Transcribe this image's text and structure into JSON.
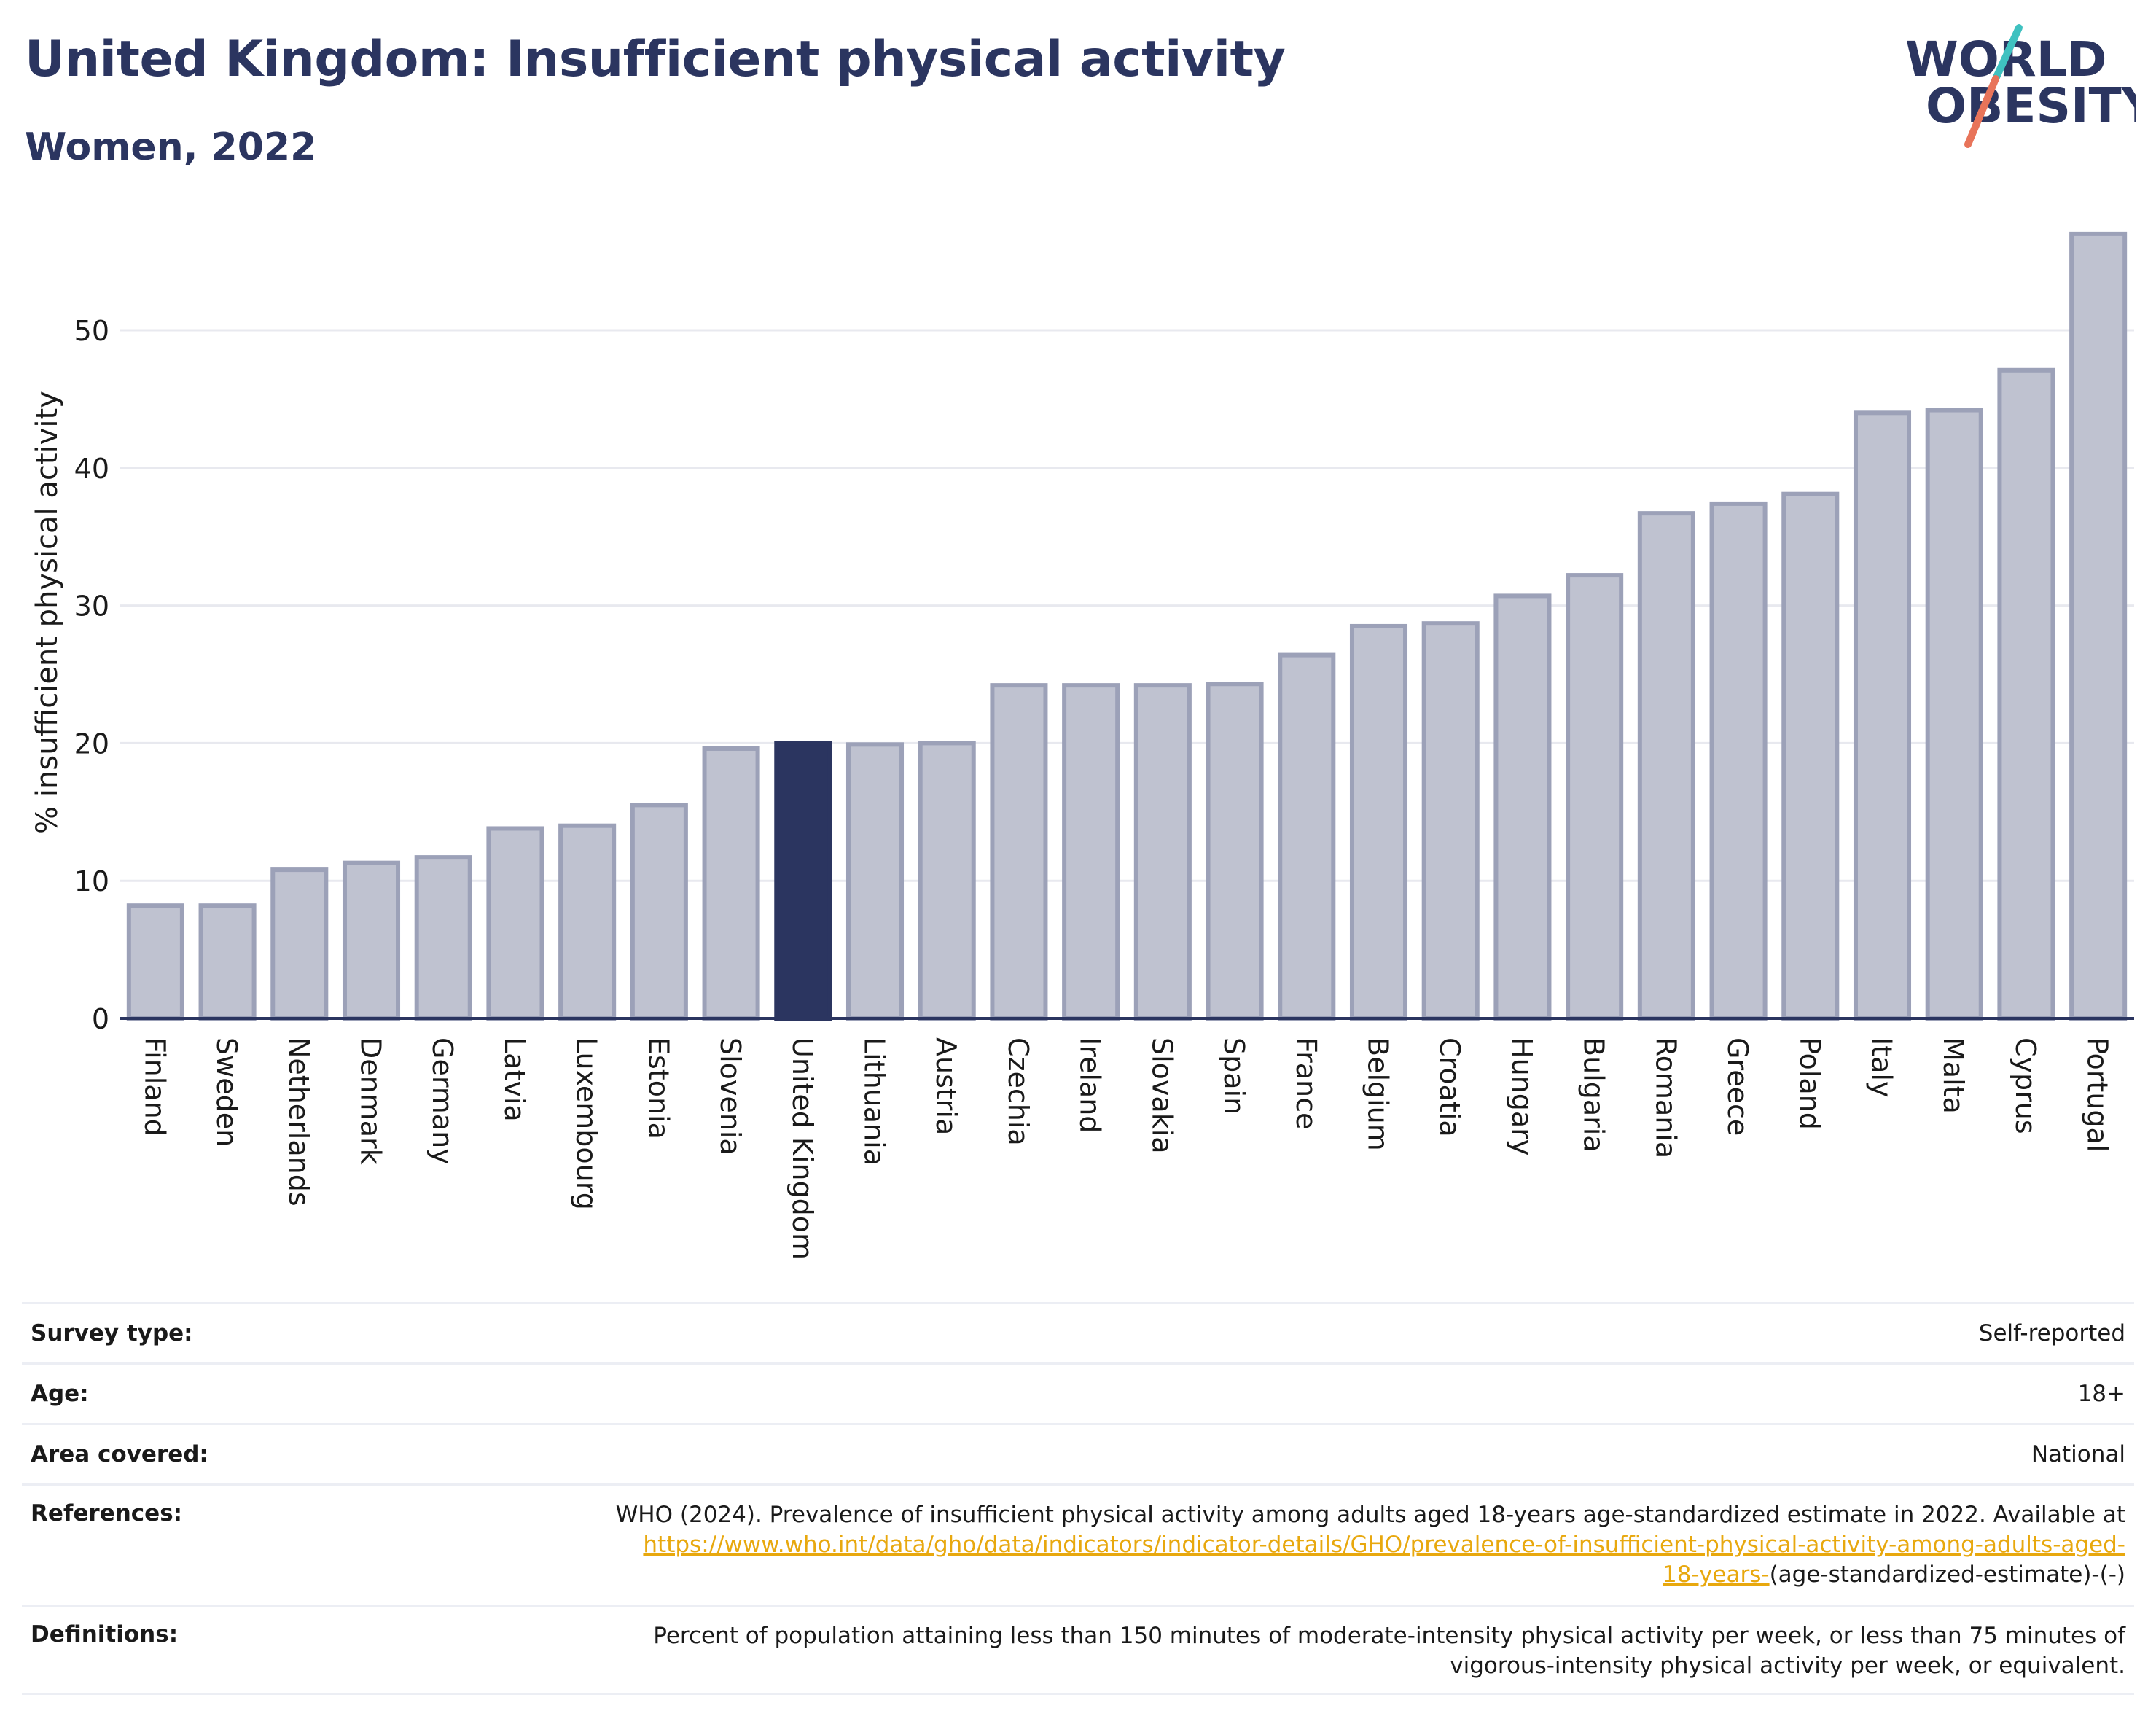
{
  "title": "United Kingdom: Insufficient physical activity",
  "subtitle": "Women, 2022",
  "logo": {
    "line1": "WORLD",
    "line2": "OBESITY"
  },
  "colors": {
    "highlight": "#2b3560",
    "bar": "#bfc2d0",
    "bar_stroke": "#9ca1b8",
    "grid": "#e8e9ef",
    "link": "#e8a80e",
    "logo_teal": "#3fc1c0",
    "logo_coral": "#e8745a"
  },
  "chart_data": {
    "type": "bar",
    "ylabel": "% insufficient physical activity",
    "ylim": [
      0,
      58
    ],
    "yticks": [
      0,
      10,
      20,
      30,
      40,
      50
    ],
    "grid": true,
    "highlight": "United Kingdom",
    "categories": [
      "Finland",
      "Sweden",
      "Netherlands",
      "Denmark",
      "Germany",
      "Latvia",
      "Luxembourg",
      "Estonia",
      "Slovenia",
      "United Kingdom",
      "Lithuania",
      "Austria",
      "Czechia",
      "Ireland",
      "Slovakia",
      "Spain",
      "France",
      "Belgium",
      "Croatia",
      "Hungary",
      "Bulgaria",
      "Romania",
      "Greece",
      "Poland",
      "Italy",
      "Malta",
      "Cyprus",
      "Portugal"
    ],
    "values": [
      8.2,
      8.2,
      10.8,
      11.3,
      11.7,
      13.8,
      14.0,
      15.5,
      19.6,
      20.0,
      19.9,
      20.0,
      24.2,
      24.2,
      24.2,
      24.3,
      26.4,
      28.5,
      28.7,
      30.7,
      32.2,
      36.7,
      37.4,
      38.1,
      44.0,
      44.2,
      47.1,
      57.0
    ]
  },
  "info": {
    "survey_label": "Survey type:",
    "survey_value": "Self-reported",
    "age_label": "Age:",
    "age_value": "18+",
    "area_label": "Area covered:",
    "area_value": "National",
    "references_label": "References:",
    "references_text": "WHO (2024). Prevalence of insufficient physical activity among adults aged 18-years age-standardized estimate in 2022. Available at",
    "references_link_1": "https://www.who.int/data/gho/data/indicators/indicator-details/GHO/prevalence-of-insufficient-physical-activity-among-adults-aged-",
    "references_link_2": "18-years-",
    "references_tail": "(age-standardized-estimate)-(-)",
    "definitions_label": "Definitions:",
    "definitions_line1": "Percent of population attaining less than 150 minutes of moderate-intensity physical activity per week, or less than 75 minutes of",
    "definitions_line2": "vigorous-intensity physical activity per week, or equivalent."
  }
}
